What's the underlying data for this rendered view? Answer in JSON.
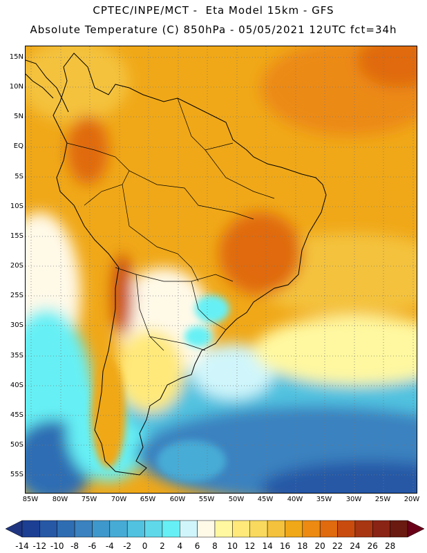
{
  "header": {
    "line1": "CPTEC/INPE/MCT -  Eta Model 15km - GFS",
    "line2": "Absolute Temperature (C) 850hPa - 05/05/2021 12UTC fct=34h"
  },
  "map": {
    "latitude_labels": [
      "15N",
      "10N",
      "5N",
      "EQ",
      "5S",
      "10S",
      "15S",
      "20S",
      "25S",
      "30S",
      "35S",
      "40S",
      "45S",
      "50S",
      "55S"
    ],
    "longitude_labels": [
      "85W",
      "80W",
      "75W",
      "70W",
      "65W",
      "60W",
      "55W",
      "50W",
      "45W",
      "40W",
      "35W",
      "30W",
      "25W",
      "20W"
    ]
  },
  "colorbar": {
    "labels": [
      "-14",
      "-12",
      "-10",
      "-8",
      "-6",
      "-4",
      "-2",
      "0",
      "2",
      "4",
      "6",
      "8",
      "10",
      "12",
      "14",
      "16",
      "18",
      "20",
      "22",
      "24",
      "26",
      "28"
    ],
    "colors": [
      "#1c3f94",
      "#2658a6",
      "#2f6db3",
      "#3a82c0",
      "#3f98cb",
      "#46acd6",
      "#51c2e0",
      "#5fd8ea",
      "#66f0f5",
      "#d0f6fb",
      "#fff9e8",
      "#fff8a0",
      "#ffe97a",
      "#f9d95e",
      "#f4c23c",
      "#f0a818",
      "#ec8a12",
      "#e06a0e",
      "#c94c0e",
      "#a83612",
      "#8a2414",
      "#6a1a10"
    ],
    "left_arrow_color": "#1f3580",
    "right_arrow_color": "#6a0018"
  }
}
